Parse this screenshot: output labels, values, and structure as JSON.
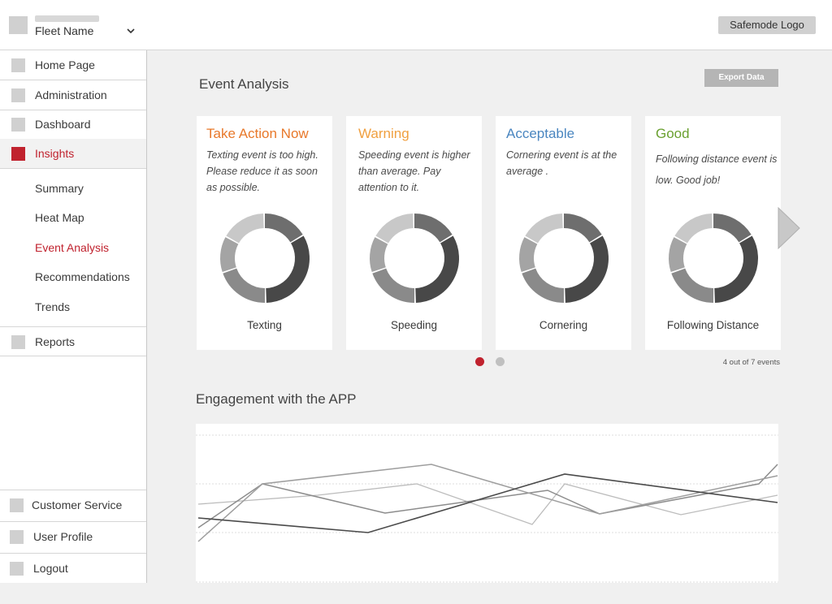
{
  "header": {
    "fleet_name": "Fleet Name",
    "logo_text": "Safemode Logo"
  },
  "sidebar": {
    "items": [
      {
        "label": "Home Page"
      },
      {
        "label": "Administration"
      },
      {
        "label": "Dashboard"
      },
      {
        "label": "Insights"
      }
    ],
    "subitems": [
      {
        "label": "Summary"
      },
      {
        "label": "Heat Map"
      },
      {
        "label": "Event Analysis"
      },
      {
        "label": "Recommendations"
      },
      {
        "label": "Trends"
      }
    ],
    "reports_label": "Reports",
    "bottom": [
      {
        "label": "Customer Service"
      },
      {
        "label": "User Profile"
      },
      {
        "label": "Logout"
      }
    ]
  },
  "event_analysis": {
    "title": "Event Analysis",
    "export_label": "Export Data",
    "cards": [
      {
        "status": "Take Action Now",
        "status_color": "#e8782a",
        "description": "Texting event is too high. Please reduce it as soon as possible.",
        "label": "Texting"
      },
      {
        "status": "Warning",
        "status_color": "#f0a040",
        "description": "Speeding event is higher than average. Pay attention to it.",
        "label": "Speeding"
      },
      {
        "status": "Acceptable",
        "status_color": "#4a86c0",
        "description": "Cornering event is at the average .",
        "label": "Cornering"
      },
      {
        "status": "Good",
        "status_color": "#6aa030",
        "description": "Following distance event is low. Good job!",
        "label": "Following Distance"
      }
    ],
    "events_count": "4 out of 7 events"
  },
  "engagement": {
    "title": "Engagement with the APP"
  },
  "colors": {
    "accent": "#c0222e"
  }
}
